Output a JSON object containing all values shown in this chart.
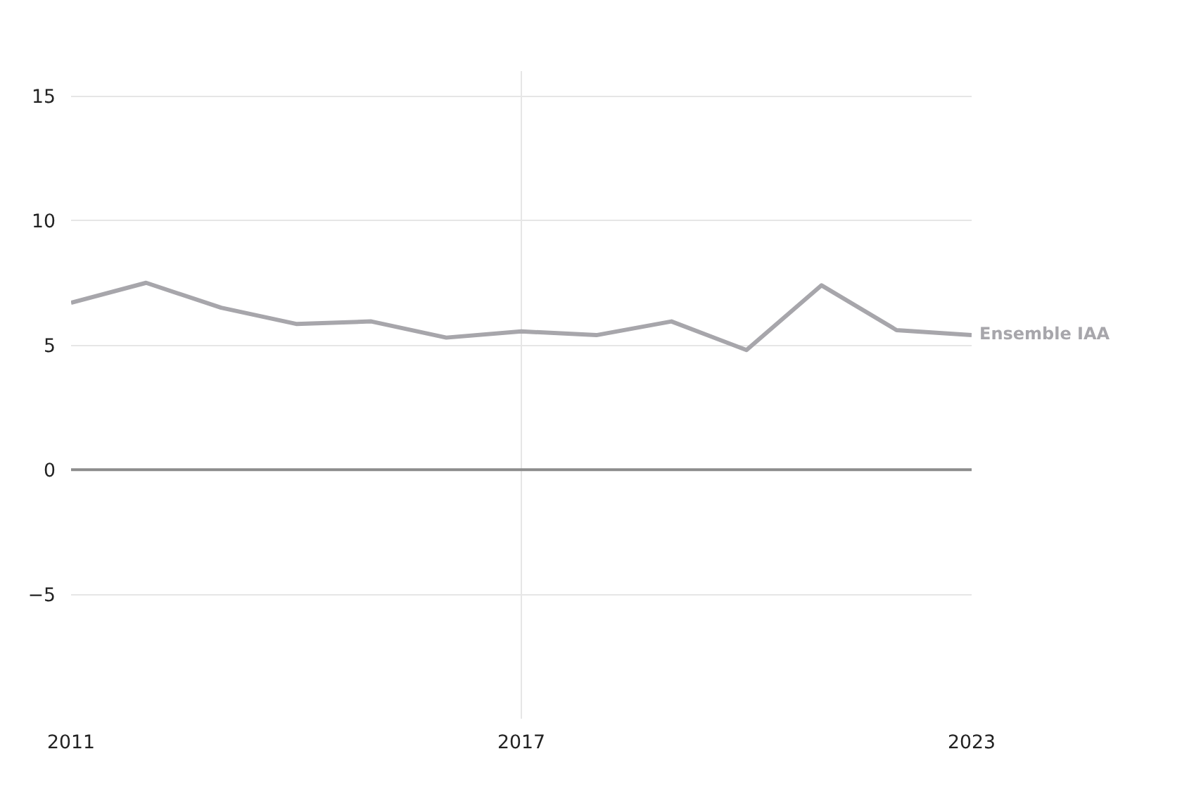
{
  "chart_data": {
    "type": "line",
    "x": [
      2011,
      2012,
      2013,
      2014,
      2015,
      2016,
      2017,
      2018,
      2019,
      2020,
      2021,
      2022,
      2023
    ],
    "series": [
      {
        "name": "Ensemble IAA",
        "color": "#a7a6ab",
        "values": [
          6.7,
          7.5,
          6.5,
          5.85,
          5.95,
          5.3,
          5.55,
          5.4,
          5.95,
          4.8,
          7.4,
          5.6,
          5.4
        ]
      }
    ],
    "xlim": [
      2011,
      2023
    ],
    "xticks": [
      2011,
      2017,
      2023
    ],
    "ylim": [
      -10,
      16
    ],
    "yticks": [
      -5,
      0,
      5,
      10,
      15
    ],
    "ref_lines": [
      {
        "axis": "y",
        "value": 0,
        "color": "#8c8c8c"
      }
    ],
    "grid": true,
    "legend": false,
    "marker": "none",
    "line_style": "solid"
  }
}
